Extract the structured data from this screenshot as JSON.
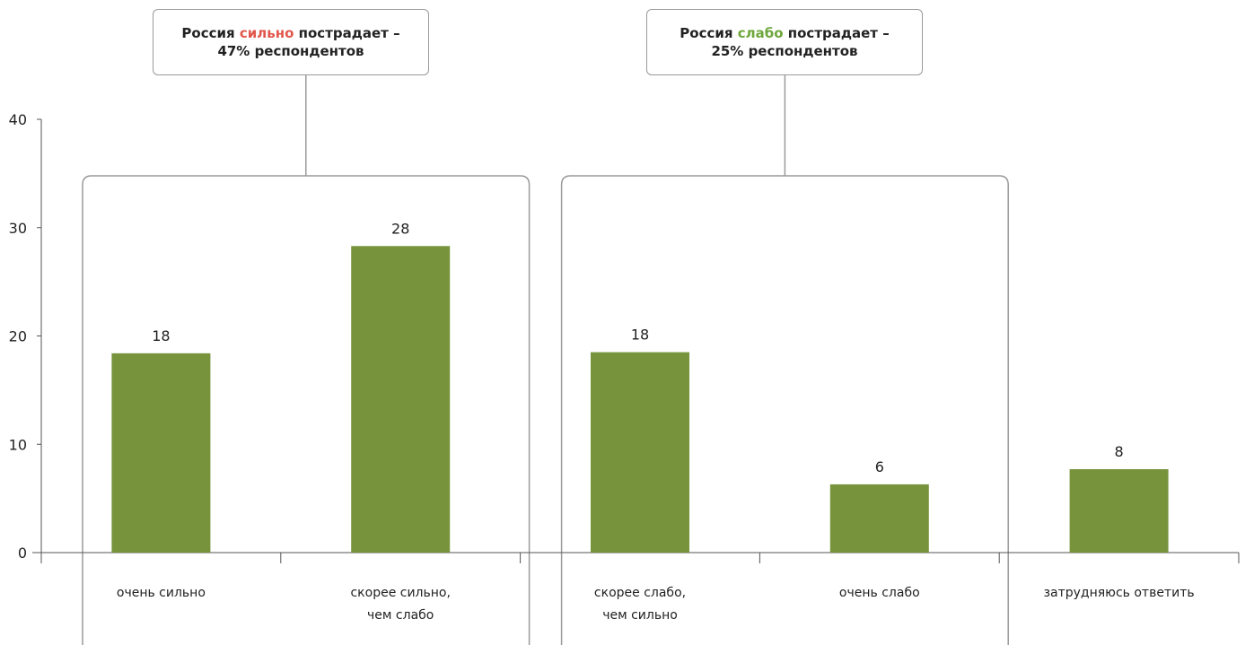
{
  "chart_data": {
    "type": "bar",
    "categories": [
      [
        "очень сильно"
      ],
      [
        "скорее сильно,",
        "чем слабо"
      ],
      [
        "скорее слабо,",
        "чем сильно"
      ],
      [
        "очень слабо"
      ],
      [
        "затрудняюсь ответить"
      ]
    ],
    "values": [
      18,
      28,
      18,
      6,
      8
    ],
    "value_labels": [
      "18",
      "28",
      "18",
      "6",
      "8"
    ],
    "plotted_values": [
      18.4,
      28.3,
      18.5,
      6.3,
      7.7
    ],
    "ylim": [
      0,
      40
    ],
    "yticks": [
      "0",
      "10",
      "20",
      "30",
      "40"
    ],
    "grid": false,
    "legend": "none",
    "bar_color": "#77933c",
    "groups": [
      {
        "label_before": "Россия ",
        "highlight": "сильно",
        "label_after": " пострадает –",
        "line2": "47% респондентов",
        "highlight_color": "#e2574c"
      },
      {
        "label_before": "Россия ",
        "highlight": "слабо",
        "label_after": " пострадает –",
        "line2": "25% респондентов",
        "highlight_color": "#6ea63b"
      }
    ]
  }
}
